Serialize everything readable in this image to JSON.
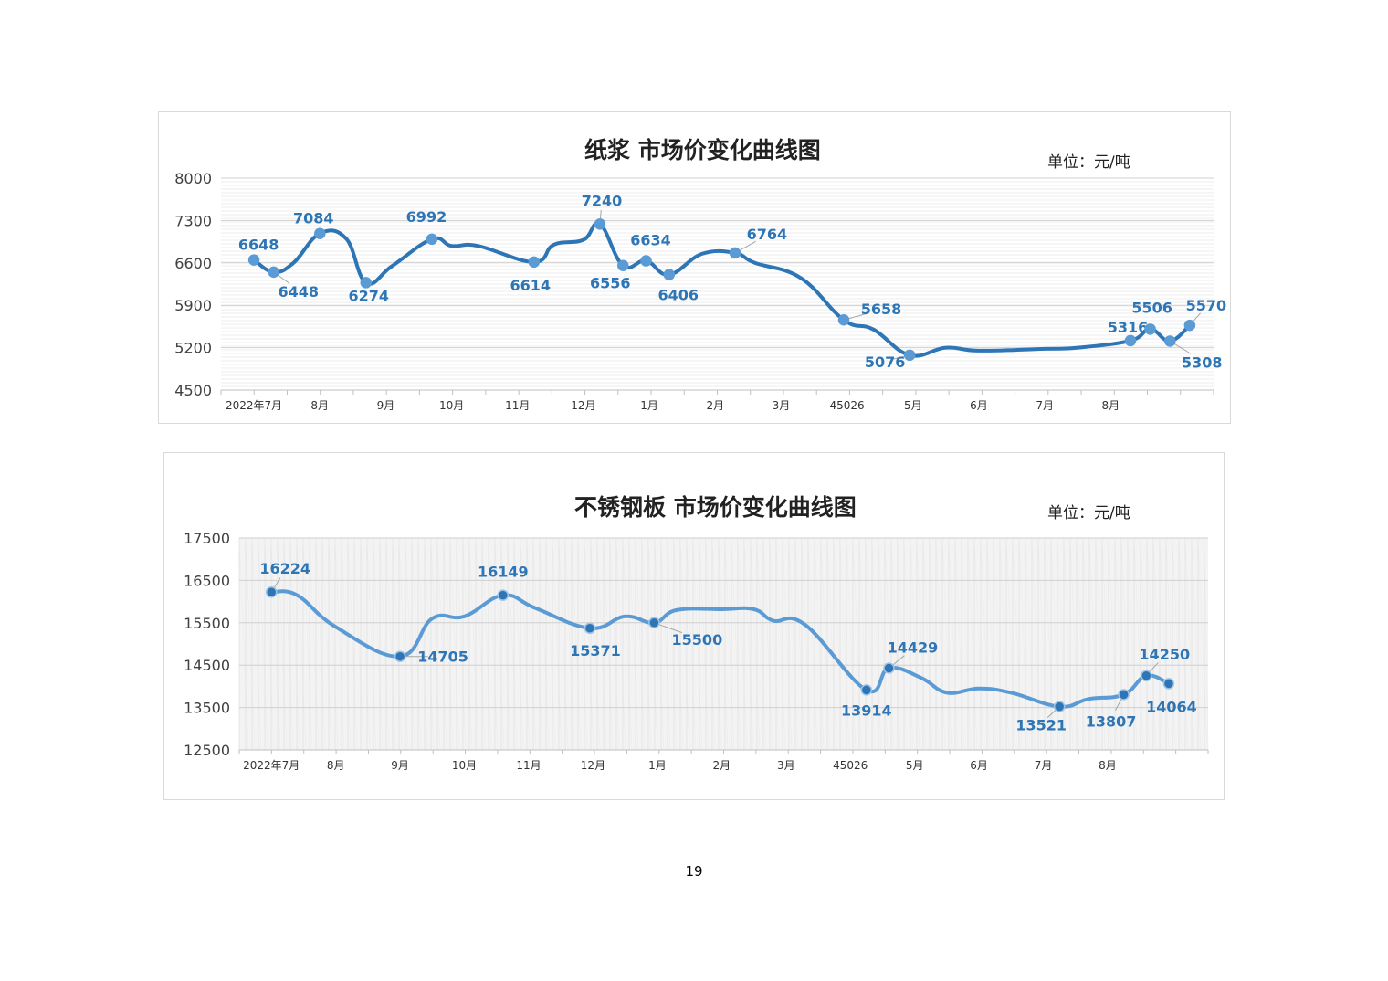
{
  "page": {
    "number": "19"
  },
  "chart_data": [
    {
      "type": "line",
      "title": "纸浆 市场价变化曲线图",
      "unit": "单位：元/吨",
      "ylim": [
        4500,
        8000
      ],
      "yticks": [
        4500,
        5200,
        5900,
        6600,
        7300,
        8000
      ],
      "grid": true,
      "x_range": [
        0,
        14.7
      ],
      "x_ticks": [
        {
          "x": 0.5,
          "label": "2022年7月"
        },
        {
          "x": 1.5,
          "label": "8月"
        },
        {
          "x": 2.5,
          "label": "9月"
        },
        {
          "x": 3.5,
          "label": "10月"
        },
        {
          "x": 4.5,
          "label": "11月"
        },
        {
          "x": 5.5,
          "label": "12月"
        },
        {
          "x": 6.5,
          "label": "1月"
        },
        {
          "x": 7.5,
          "label": "2月"
        },
        {
          "x": 8.5,
          "label": "3月"
        },
        {
          "x": 9.5,
          "label": "45026"
        },
        {
          "x": 10.5,
          "label": "5月"
        },
        {
          "x": 11.5,
          "label": "6月"
        },
        {
          "x": 12.5,
          "label": "7月"
        },
        {
          "x": 13.5,
          "label": "8月"
        }
      ],
      "series": [
        {
          "color": "#2e75b6",
          "marker_color": "#5b9bd5",
          "points": [
            {
              "x": 0.5,
              "y": 6648,
              "label": "6648"
            },
            {
              "x": 0.8,
              "y": 6448,
              "label": "6448"
            },
            {
              "x": 1.5,
              "y": 7084,
              "label": "7084"
            },
            {
              "x": 2.2,
              "y": 6274,
              "label": "6274"
            },
            {
              "x": 3.2,
              "y": 6992,
              "label": "6992"
            },
            {
              "x": 4.75,
              "y": 6614,
              "label": "6614"
            },
            {
              "x": 5.75,
              "y": 7240,
              "label": "7240"
            },
            {
              "x": 6.1,
              "y": 6556,
              "label": "6556"
            },
            {
              "x": 6.45,
              "y": 6634,
              "label": "6634"
            },
            {
              "x": 6.8,
              "y": 6406,
              "label": "6406"
            },
            {
              "x": 7.8,
              "y": 6764,
              "label": "6764"
            },
            {
              "x": 9.45,
              "y": 5658,
              "label": "5658"
            },
            {
              "x": 10.45,
              "y": 5076,
              "label": "5076"
            },
            {
              "x": 13.8,
              "y": 5316,
              "label": "5316"
            },
            {
              "x": 14.1,
              "y": 5506,
              "label": "5506"
            },
            {
              "x": 14.4,
              "y": 5308,
              "label": "5308"
            },
            {
              "x": 14.7,
              "y": 5570,
              "label": "5570"
            }
          ],
          "curve": [
            [
              0.5,
              6648
            ],
            [
              0.8,
              6448
            ],
            [
              1.1,
              6600
            ],
            [
              1.5,
              7084
            ],
            [
              1.9,
              7000
            ],
            [
              2.2,
              6274
            ],
            [
              2.6,
              6550
            ],
            [
              3.2,
              6992
            ],
            [
              3.5,
              6880
            ],
            [
              3.9,
              6880
            ],
            [
              4.75,
              6614
            ],
            [
              5.05,
              6900
            ],
            [
              5.5,
              6980
            ],
            [
              5.75,
              7240
            ],
            [
              6.1,
              6556
            ],
            [
              6.45,
              6634
            ],
            [
              6.8,
              6406
            ],
            [
              7.3,
              6750
            ],
            [
              7.8,
              6764
            ],
            [
              8.1,
              6600
            ],
            [
              8.8,
              6350
            ],
            [
              9.45,
              5658
            ],
            [
              9.9,
              5500
            ],
            [
              10.45,
              5076
            ],
            [
              11.0,
              5200
            ],
            [
              11.5,
              5150
            ],
            [
              12.5,
              5180
            ],
            [
              13.0,
              5200
            ],
            [
              13.8,
              5316
            ],
            [
              14.1,
              5506
            ],
            [
              14.4,
              5308
            ],
            [
              14.7,
              5570
            ]
          ]
        }
      ]
    },
    {
      "type": "line",
      "title": "不锈钢板 市场价变化曲线图",
      "unit": "单位：元/吨",
      "ylim": [
        12500,
        17500
      ],
      "yticks": [
        12500,
        13500,
        14500,
        15500,
        16500,
        17500
      ],
      "grid": true,
      "x_range": [
        0,
        14.7
      ],
      "x_ticks": [
        {
          "x": 0.5,
          "label": "2022年7月"
        },
        {
          "x": 1.5,
          "label": "8月"
        },
        {
          "x": 2.5,
          "label": "9月"
        },
        {
          "x": 3.5,
          "label": "10月"
        },
        {
          "x": 4.5,
          "label": "11月"
        },
        {
          "x": 5.5,
          "label": "12月"
        },
        {
          "x": 6.5,
          "label": "1月"
        },
        {
          "x": 7.5,
          "label": "2月"
        },
        {
          "x": 8.5,
          "label": "3月"
        },
        {
          "x": 9.5,
          "label": "45026"
        },
        {
          "x": 10.5,
          "label": "5月"
        },
        {
          "x": 11.5,
          "label": "6月"
        },
        {
          "x": 12.5,
          "label": "7月"
        },
        {
          "x": 13.5,
          "label": "8月"
        }
      ],
      "series": [
        {
          "color": "#5b9bd5",
          "marker_color": "#2e75b6",
          "points": [
            {
              "x": 0.5,
              "y": 16224,
              "label": "16224"
            },
            {
              "x": 2.5,
              "y": 14705,
              "label": "14705"
            },
            {
              "x": 4.1,
              "y": 16149,
              "label": "16149"
            },
            {
              "x": 5.45,
              "y": 15371,
              "label": "15371"
            },
            {
              "x": 6.45,
              "y": 15500,
              "label": "15500"
            },
            {
              "x": 9.75,
              "y": 13914,
              "label": "13914"
            },
            {
              "x": 10.1,
              "y": 14429,
              "label": "14429"
            },
            {
              "x": 12.75,
              "y": 13521,
              "label": "13521"
            },
            {
              "x": 13.75,
              "y": 13807,
              "label": "13807"
            },
            {
              "x": 14.1,
              "y": 14250,
              "label": "14250"
            },
            {
              "x": 14.45,
              "y": 14064,
              "label": "14064"
            }
          ],
          "curve": [
            [
              0.5,
              16224
            ],
            [
              0.9,
              16150
            ],
            [
              1.5,
              15400
            ],
            [
              2.5,
              14705
            ],
            [
              3.0,
              15600
            ],
            [
              3.5,
              15650
            ],
            [
              4.1,
              16149
            ],
            [
              4.6,
              15850
            ],
            [
              5.45,
              15371
            ],
            [
              6.0,
              15650
            ],
            [
              6.45,
              15500
            ],
            [
              6.8,
              15800
            ],
            [
              7.5,
              15820
            ],
            [
              8.0,
              15820
            ],
            [
              8.3,
              15550
            ],
            [
              8.8,
              15450
            ],
            [
              9.75,
              13914
            ],
            [
              10.1,
              14429
            ],
            [
              10.6,
              14200
            ],
            [
              11.0,
              13850
            ],
            [
              11.5,
              13950
            ],
            [
              12.0,
              13850
            ],
            [
              12.75,
              13521
            ],
            [
              13.2,
              13700
            ],
            [
              13.75,
              13807
            ],
            [
              14.1,
              14250
            ],
            [
              14.45,
              14064
            ]
          ]
        }
      ]
    }
  ]
}
